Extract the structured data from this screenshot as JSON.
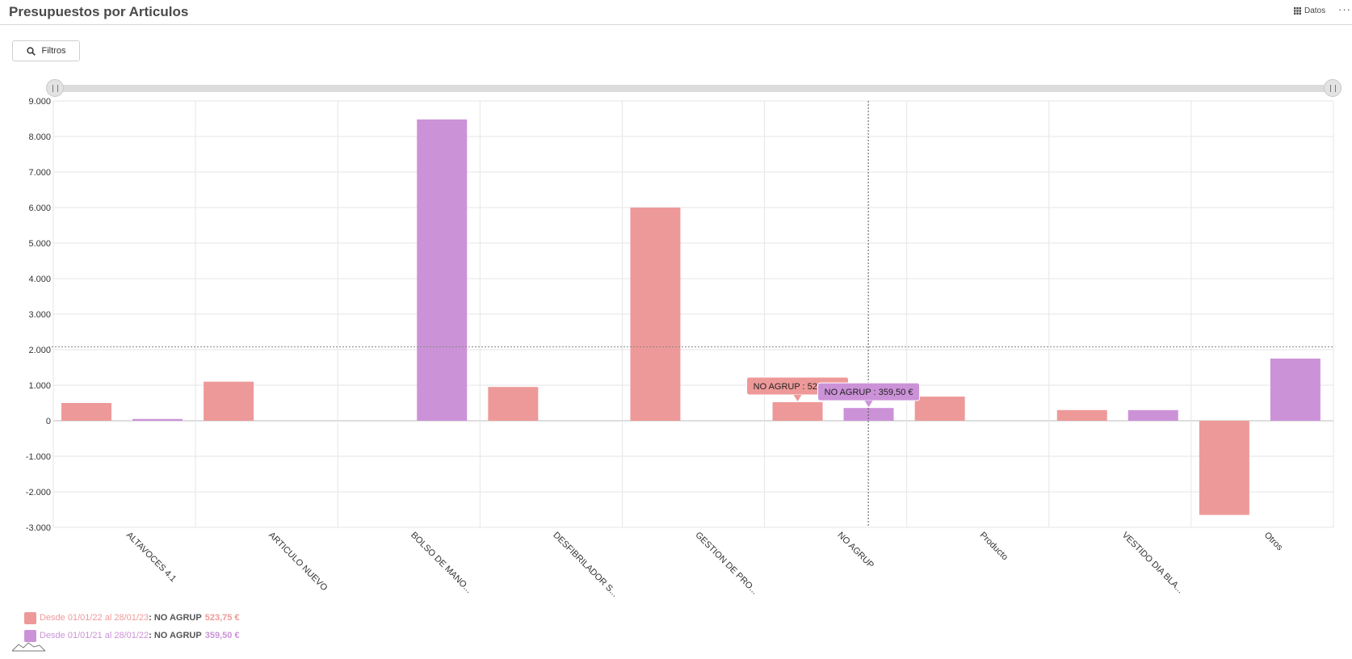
{
  "header": {
    "title": "Presupuestos por Articulos",
    "datos_label": "Datos",
    "more_label": "···"
  },
  "toolbar": {
    "filtros_label": "Filtros"
  },
  "colors": {
    "series1": "#ee9999",
    "series2": "#cc92d8"
  },
  "tooltips": [
    {
      "text": "NO AGRUP : 523,75 €",
      "series": 0,
      "category": 5
    },
    {
      "text": "NO AGRUP : 359,50 €",
      "series": 1,
      "category": 5
    }
  ],
  "legend": [
    {
      "period": "Desde 01/01/22 al 28/01/23",
      "category": "NO AGRUP",
      "value": "523,75 €"
    },
    {
      "period": "Desde 01/01/21 al 28/01/22",
      "category": "NO AGRUP",
      "value": "359,50 €"
    }
  ],
  "chart_data": {
    "type": "bar",
    "categories": [
      "ALTAVOCES 4.1",
      "ARTICULO NUEVO",
      "BOLSO DE MANO...",
      "DESFIBRILADOR S...",
      "GESTION DE PRO...",
      "NO AGRUP",
      "Producto",
      "VESTIDO DIA BLA...",
      "Otros"
    ],
    "series": [
      {
        "name": "Desde 01/01/22 al 28/01/23",
        "color": "#ee9999",
        "values": [
          500,
          1100,
          null,
          950,
          6000,
          523.75,
          680,
          300,
          -2650
        ]
      },
      {
        "name": "Desde 01/01/21 al 28/01/22",
        "color": "#cc92d8",
        "values": [
          50,
          null,
          8480,
          null,
          null,
          359.5,
          null,
          300,
          1750
        ]
      }
    ],
    "ylim": [
      -3000,
      9000
    ],
    "yticks": [
      9000,
      8000,
      7000,
      6000,
      5000,
      4000,
      3000,
      2000,
      1000,
      0,
      -1000,
      -2000,
      -3000
    ],
    "ytick_labels": [
      "9.000",
      "8.000",
      "7.000",
      "6.000",
      "5.000",
      "4.000",
      "3.000",
      "2.000",
      "1.000",
      "0",
      "-1.000",
      "-2.000",
      "-3.000"
    ],
    "crosshair": {
      "y_value": 2080,
      "category": "NO AGRUP"
    },
    "grid": true
  }
}
